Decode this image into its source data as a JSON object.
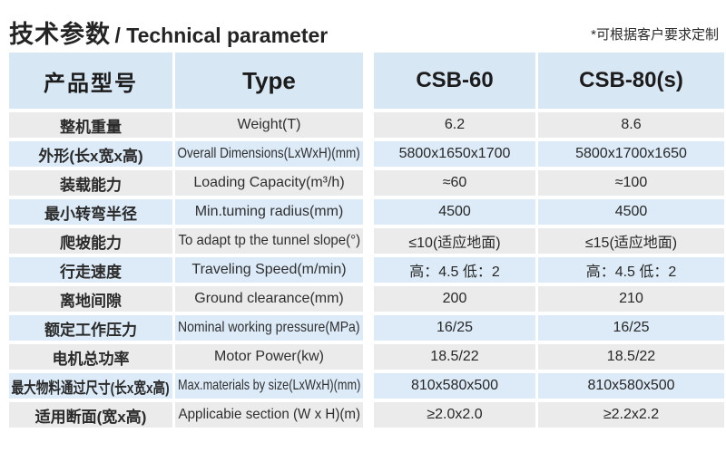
{
  "page": {
    "title_cn": "技术参数",
    "title_en": "/ Technical parameter",
    "custom_note": "*可根据客户要求定制"
  },
  "table": {
    "headers": [
      "产品型号",
      "Type",
      "CSB-60",
      "CSB-80(s)"
    ],
    "rows": [
      {
        "cn": "整机重量",
        "en": "Weight(T)",
        "csb60": "6.2",
        "csb80": "8.6"
      },
      {
        "cn": "外形(长x宽x高)",
        "en": "Overall Dimensions(LxWxH)(mm)",
        "csb60": "5800x1650x1700",
        "csb80": "5800x1700x1650"
      },
      {
        "cn": "装载能力",
        "en": "Loading Capacity(m³/h)",
        "csb60": "≈60",
        "csb80": "≈100"
      },
      {
        "cn": "最小转弯半径",
        "en": "Min.tuming radius(mm)",
        "csb60": "4500",
        "csb80": "4500"
      },
      {
        "cn": "爬坡能力",
        "en": "To adapt tp the tunnel slope(°)",
        "csb60": "≤10(适应地面)",
        "csb80": "≤15(适应地面)"
      },
      {
        "cn": "行走速度",
        "en": "Traveling Speed(m/min)",
        "csb60": "高：4.5 低：2",
        "csb80": "高：4.5 低：2"
      },
      {
        "cn": "离地间隙",
        "en": "Ground clearance(mm)",
        "csb60": "200",
        "csb80": "210"
      },
      {
        "cn": "额定工作压力",
        "en": "Nominal working pressure(MPa)",
        "csb60": "16/25",
        "csb80": "16/25"
      },
      {
        "cn": "电机总功率",
        "en": "Motor Power(kw)",
        "csb60": "18.5/22",
        "csb80": "18.5/22"
      },
      {
        "cn": "最大物料通过尺寸(长x宽x高)",
        "en": "Max.materials by size(LxWxH)(mm)",
        "csb60": "810x580x500",
        "csb80": "810x580x500"
      },
      {
        "cn": "适用断面(宽x高)",
        "en": "Applicabie section (W x H)(m)",
        "csb60": "≥2.0x2.0",
        "csb80": "≥2.2x2.2"
      }
    ]
  },
  "colors": {
    "header_bg": "#d8e7f4",
    "row_blue_bg": "#dcebf7",
    "row_gray_bg": "#ebebeb",
    "text": "#2d2d2d",
    "page_bg": "#ffffff"
  }
}
